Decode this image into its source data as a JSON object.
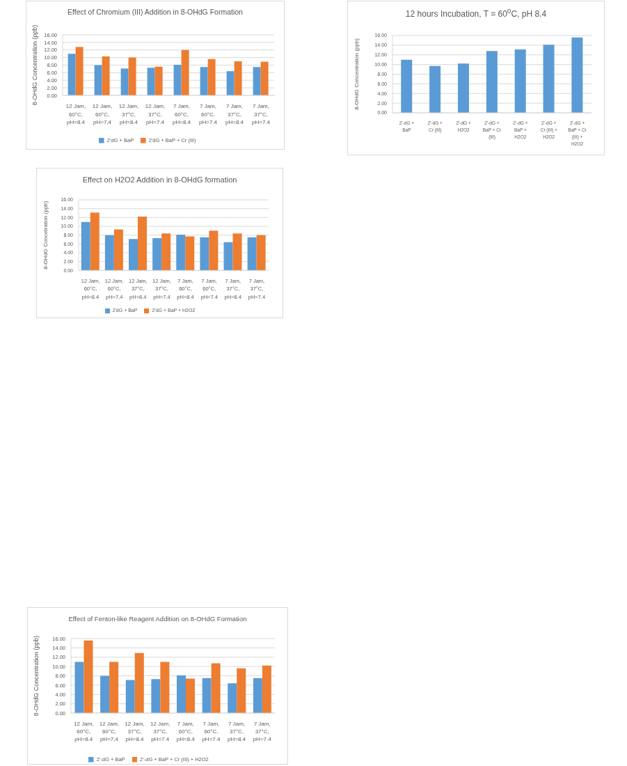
{
  "chart_data": [
    {
      "type": "bar",
      "title": "Effect of Chromium (III) Addition in 8-OHdG Formation",
      "ylabel": "8-OHdG Concentration (ppb)",
      "categories": [
        "12 Jam, 60°C, pH=8.4",
        "12 Jam, 60°C, pH=7,4",
        "12 Jam, 37°C, pH=8.4",
        "12 Jam, 37°C, pH=7.4",
        "7 Jam, 60°C, pH=8.4",
        "7 Jam, 60°C, pH=7.4",
        "7 Jam, 37°C, pH=8.4",
        "7 Jam, 37°C, pH=7.4"
      ],
      "series": [
        {
          "name": "2'dG + BaP",
          "color": "#5b9bd5",
          "values": [
            11.0,
            8.0,
            7.1,
            7.3,
            8.1,
            7.5,
            6.4,
            7.5
          ]
        },
        {
          "name": "2'dG + BaP + Cr (III)",
          "color": "#ed7d31",
          "values": [
            12.8,
            10.3,
            10.0,
            7.6,
            12.0,
            9.6,
            9.0,
            8.9
          ]
        }
      ],
      "ylim": [
        0,
        16
      ],
      "yticks": [
        {
          "value": 0,
          "label": "0.00"
        },
        {
          "value": 2,
          "label": "2.00"
        },
        {
          "value": 4,
          "label": "4.00"
        },
        {
          "value": 6,
          "label": "6.00"
        },
        {
          "value": 8,
          "label": "8.00"
        },
        {
          "value": 10,
          "label": "10.00"
        },
        {
          "value": 12,
          "label": "12.00"
        },
        {
          "value": 14,
          "label": "14.00"
        },
        {
          "value": 16,
          "label": "16.00"
        }
      ],
      "grid": "y",
      "legend": "bottom"
    },
    {
      "type": "bar",
      "title": "12 hours Incubation, T = 60$^{o}$C, pH 8.4",
      "ylabel": "8-OHdG Concentration (ppb)",
      "categories": [
        "2'-dG + BaP",
        "2'-dG + Cr (III)",
        "2'-dG + H2O2",
        "2'-dG + BaP + Cr (III)",
        "2'-dG + BaP + H2O2",
        "2'-dG + Cr (III) + H2O2",
        "2'-dG + BaP + Cr (III) + H2O2"
      ],
      "values": [
        11.0,
        9.7,
        10.2,
        12.8,
        13.1,
        14.1,
        15.6
      ],
      "color": "#5b9bd5",
      "ylim": [
        0,
        16
      ],
      "yticks": [
        {
          "value": 0,
          "label": "0.00"
        },
        {
          "value": 2,
          "label": "2.00"
        },
        {
          "value": 4,
          "label": "4.00"
        },
        {
          "value": 6,
          "label": "6.00"
        },
        {
          "value": 8,
          "label": "8.00"
        },
        {
          "value": 10,
          "label": "10.00"
        },
        {
          "value": 12,
          "label": "12.00"
        },
        {
          "value": 14,
          "label": "14.00"
        },
        {
          "value": 16,
          "label": "16.00"
        }
      ],
      "grid": "y"
    },
    {
      "type": "bar",
      "title": "Effect on H2O2 Addition in 8-OHdG formation",
      "ylabel": "8-OHdG Concetration (ppb)",
      "categories": [
        "12 Jam, 60°C, pH=8.4",
        "12 Jam, 60°C, pH=7,4",
        "12 Jam, 37°C, pH=8.4",
        "12 Jam, 37°C, pH=7.4",
        "7 Jam, 60°C, pH=8.4",
        "7 Jam, 60°C, pH=7.4",
        "7 Jam, 37°C, pH=8.4",
        "7 Jam, 37°C, pH=7.4"
      ],
      "series": [
        {
          "name": "2'dG + BaP",
          "color": "#5b9bd5",
          "values": [
            11.0,
            8.0,
            7.1,
            7.3,
            8.1,
            7.5,
            6.4,
            7.5
          ]
        },
        {
          "name": "2'dG + BaP + H2O2",
          "color": "#ed7d31",
          "values": [
            13.1,
            9.3,
            12.2,
            8.4,
            7.7,
            9.0,
            8.4,
            8.0
          ]
        }
      ],
      "ylim": [
        0,
        16
      ],
      "yticks": [
        {
          "value": 0,
          "label": "0.00"
        },
        {
          "value": 2,
          "label": "2.00"
        },
        {
          "value": 4,
          "label": "4.00"
        },
        {
          "value": 6,
          "label": "6.00"
        },
        {
          "value": 8,
          "label": "8.00"
        },
        {
          "value": 10,
          "label": "10.00"
        },
        {
          "value": 12,
          "label": "12.00"
        },
        {
          "value": 14,
          "label": "14.00"
        },
        {
          "value": 16,
          "label": "16.00"
        }
      ],
      "grid": "y",
      "legend": "bottom"
    },
    {
      "type": "bar",
      "title": "Effect of Fenton-like Reagent Addition on 8-OHdG Formation",
      "ylabel": "8-OHdG Concentration (ppb)",
      "categories": [
        "12 Jam, 60°C, pH=8.4",
        "12 Jam, 60°C, pH=7,4",
        "12 Jam, 37°C, pH=8.4",
        "12 Jam, 37°C, pH=7.4",
        "7 Jam, 60°C, pH=8.4",
        "7 Jam, 60°C, pH=7.4",
        "7 Jam, 37°C, pH=8.4",
        "7 Jam, 37°C, pH=7.4"
      ],
      "series": [
        {
          "name": "2'-dG + BaP",
          "color": "#5b9bd5",
          "values": [
            11.0,
            8.0,
            7.1,
            7.3,
            8.1,
            7.5,
            6.4,
            7.5
          ]
        },
        {
          "name": "2'-dG + BaP + Cr (III) + H2O2",
          "color": "#ed7d31",
          "values": [
            15.6,
            11.0,
            12.9,
            11.0,
            7.4,
            10.7,
            9.6,
            10.2
          ]
        }
      ],
      "ylim": [
        0,
        16
      ],
      "yticks": [
        {
          "value": 0,
          "label": "0.00"
        },
        {
          "value": 2,
          "label": "2.00"
        },
        {
          "value": 4,
          "label": "4.00"
        },
        {
          "value": 6,
          "label": "6.00"
        },
        {
          "value": 8,
          "label": "8.00"
        },
        {
          "value": 10,
          "label": "10.00"
        },
        {
          "value": 12,
          "label": "12.00"
        },
        {
          "value": 14,
          "label": "14.00"
        },
        {
          "value": 16,
          "label": "16.00"
        }
      ],
      "grid": "y",
      "legend": "bottom"
    }
  ]
}
